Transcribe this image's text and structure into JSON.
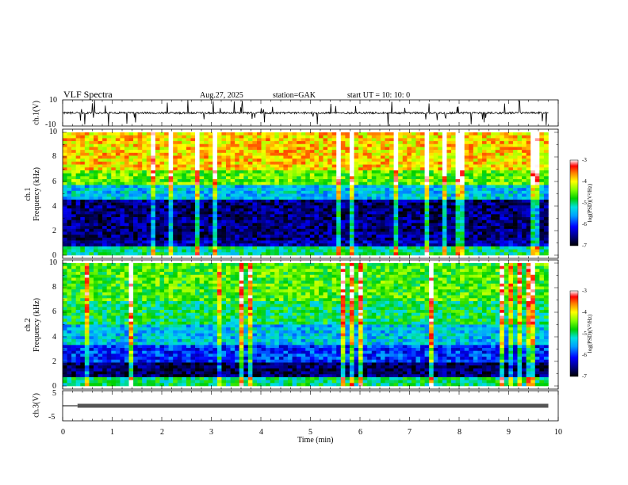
{
  "header": {
    "title": "VLF  Spectra",
    "date": "Aug.27, 2025",
    "station": "station=GAK",
    "start": "start  UT  =    10: 10: 0"
  },
  "chart_data": [
    {
      "type": "line",
      "name": "ch1-waveform",
      "ylabel": "ch.1(V)",
      "ylim": [
        -10,
        10
      ],
      "y_ticks": [
        "10",
        "-10"
      ],
      "x_range_min": [
        0,
        9.8
      ],
      "baseline_v": 0,
      "noise_v": 1.5
    },
    {
      "type": "heatmap",
      "name": "ch1-spectrogram",
      "ylabel_lines": [
        "ch.1",
        "Frequency  (kHz)"
      ],
      "ylim": [
        0,
        10
      ],
      "y_ticks": [
        "10",
        "8",
        "6",
        "4",
        "2",
        "0"
      ],
      "colorbar_label": "log(PSD)(V²/Hz)",
      "colorbar_ticks": [
        "-3",
        "-4",
        "-5",
        "-6",
        "-7"
      ],
      "color_range": [
        -7,
        -3
      ],
      "bands_khz_log_psd": [
        {
          "from": 0,
          "to": 0.7,
          "level": -5.0
        },
        {
          "from": 0.7,
          "to": 1.2,
          "level": -6.4
        },
        {
          "from": 1.2,
          "to": 4.6,
          "level": -6.6
        },
        {
          "from": 4.6,
          "to": 5.8,
          "level": -5.4
        },
        {
          "from": 5.8,
          "to": 7.0,
          "level": -4.5
        },
        {
          "from": 7.0,
          "to": 10,
          "level": -3.9
        }
      ]
    },
    {
      "type": "heatmap",
      "name": "ch2-spectrogram",
      "ylabel_lines": [
        "ch.2",
        "Frequency  (kHz)"
      ],
      "ylim": [
        0,
        10
      ],
      "y_ticks": [
        "10",
        "8",
        "6",
        "4",
        "2",
        "0"
      ],
      "colorbar_label": "log(PSD)(V²/Hz)",
      "colorbar_ticks": [
        "-3",
        "-4",
        "-5",
        "-6",
        "-7"
      ],
      "color_range": [
        -7,
        -3
      ],
      "bands_khz_log_psd": [
        {
          "from": 0,
          "to": 0.8,
          "level": -5.0
        },
        {
          "from": 0.8,
          "to": 2.0,
          "level": -6.7
        },
        {
          "from": 2.0,
          "to": 3.4,
          "level": -6.0
        },
        {
          "from": 3.4,
          "to": 5.0,
          "level": -5.4
        },
        {
          "from": 5.0,
          "to": 7.0,
          "level": -4.9
        },
        {
          "from": 7.0,
          "to": 10,
          "level": -4.6
        }
      ]
    },
    {
      "type": "line",
      "name": "ch3-waveform",
      "ylabel": "ch.3(V)",
      "ylim": [
        -5,
        5
      ],
      "y_ticks": [
        "5",
        "-5"
      ],
      "step_at_min": 0.3,
      "low_v": 0,
      "high_v": 0
    }
  ],
  "x_axis": {
    "label": "Time  (min)",
    "ticks": [
      "0",
      "1",
      "2",
      "3",
      "4",
      "5",
      "6",
      "7",
      "8",
      "9",
      "10"
    ],
    "xlim": [
      0,
      10
    ]
  }
}
